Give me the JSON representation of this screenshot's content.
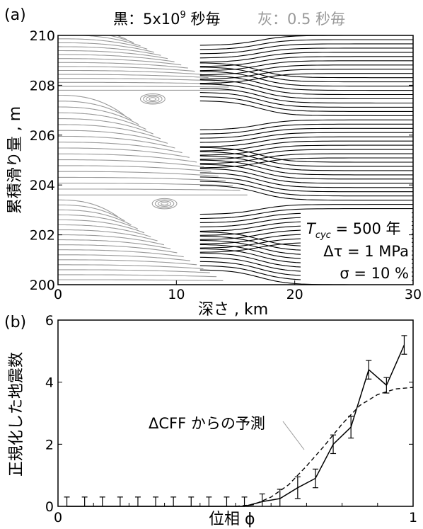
{
  "chart_data": [
    {
      "type": "line",
      "panel_label": "(a)",
      "legend_black": "黒：5x10",
      "legend_black_sup": "9",
      "legend_black_tail": " 秒毎",
      "legend_gray": "灰：0.5 秒毎",
      "xlabel": "深さ , km",
      "ylabel": "累積滑り量 , m",
      "xlim": [
        0,
        30
      ],
      "ylim": [
        200,
        210
      ],
      "xticks": [
        "0",
        "10",
        "20",
        "30"
      ],
      "yticks": [
        "200",
        "202",
        "204",
        "206",
        "208",
        "210"
      ],
      "series": [
        {
          "color": "#000000"
        },
        {
          "color": "#999999"
        }
      ],
      "annotations": {
        "tcyc_symbol": "T",
        "tcyc_sub": "cyc",
        "tcyc_value": " = 500 年",
        "dtau": "Δτ = 1 MPa",
        "sigma": "σ = 10 %"
      }
    },
    {
      "type": "line",
      "panel_label": "(b)",
      "xlabel": "位相 ϕ",
      "ylabel": "正規化した地震数",
      "xlim": [
        0,
        1
      ],
      "ylim": [
        0,
        6
      ],
      "xticks": [
        "0",
        "1"
      ],
      "yticks": [
        "0",
        "2",
        "4",
        "6"
      ],
      "annotation": "ΔCFF からの予測",
      "series": [
        {
          "style": "solid",
          "color": "#000000",
          "x": [
            0.025,
            0.075,
            0.125,
            0.175,
            0.225,
            0.275,
            0.325,
            0.375,
            0.425,
            0.475,
            0.525,
            0.575,
            0.625,
            0.675,
            0.725,
            0.775,
            0.825,
            0.875,
            0.925,
            0.975
          ],
          "y": [
            0,
            0,
            0,
            0,
            0,
            0,
            0,
            0,
            0,
            0,
            0,
            0.15,
            0.25,
            0.6,
            0.9,
            2.0,
            2.55,
            4.4,
            3.9,
            5.2
          ],
          "err": [
            0.3,
            0.3,
            0.3,
            0.3,
            0.3,
            0.3,
            0.3,
            0.3,
            0.3,
            0.3,
            0.3,
            0.25,
            0.3,
            0.35,
            0.3,
            0.3,
            0.35,
            0.3,
            0.25,
            0.3
          ]
        },
        {
          "style": "dashed",
          "color": "#000000",
          "x": [
            0.5,
            0.55,
            0.6,
            0.65,
            0.7,
            0.75,
            0.8,
            0.85,
            0.9,
            0.95,
            1.0
          ],
          "y": [
            0,
            0.05,
            0.3,
            0.7,
            1.3,
            1.95,
            2.65,
            3.25,
            3.6,
            3.78,
            3.83
          ]
        }
      ]
    }
  ]
}
